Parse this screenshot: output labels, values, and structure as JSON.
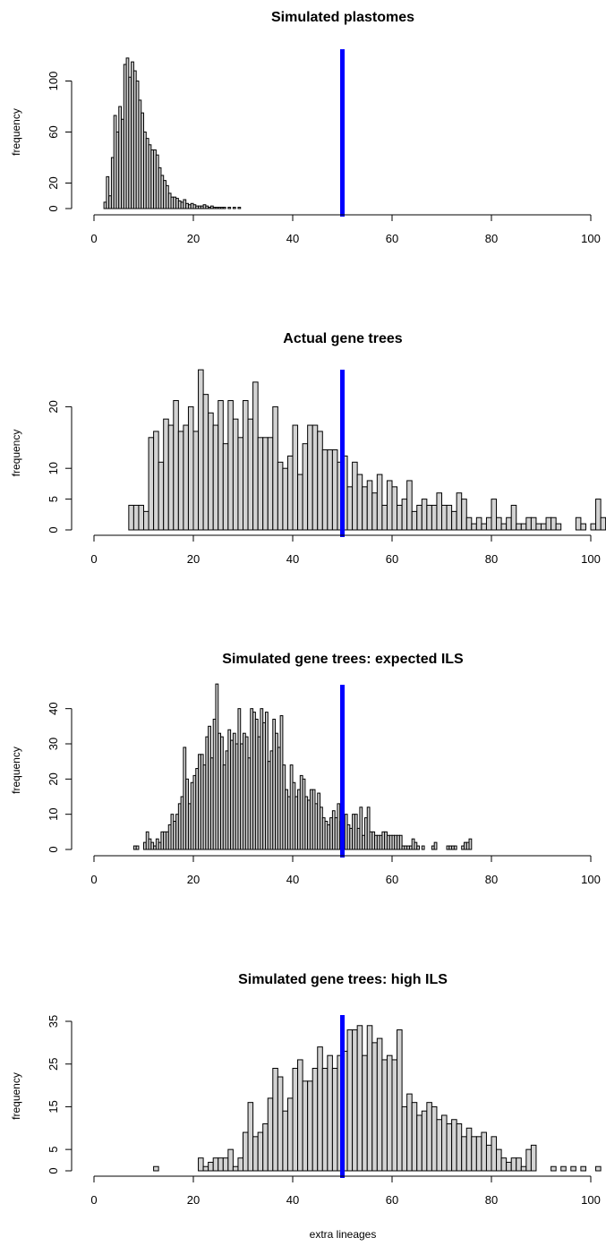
{
  "xlabel": "extra lineages",
  "chart_data": [
    {
      "type": "bar",
      "title": "Simulated plastomes",
      "ylabel": "frequency",
      "xlim": [
        0,
        100
      ],
      "ylim": [
        0,
        120
      ],
      "xticks": [
        0,
        20,
        40,
        60,
        80,
        100
      ],
      "yticks": [
        0,
        20,
        60,
        100
      ],
      "bin_width": 0.5,
      "reference_line": 50,
      "reference_color": "#0000ff",
      "bar_color": "#d3d3d3",
      "bins": [
        [
          2,
          5
        ],
        [
          2.5,
          25
        ],
        [
          3,
          10
        ],
        [
          3.5,
          40
        ],
        [
          4,
          73
        ],
        [
          4.5,
          60
        ],
        [
          5,
          80
        ],
        [
          5.5,
          70
        ],
        [
          6,
          113
        ],
        [
          6.5,
          118
        ],
        [
          7,
          103
        ],
        [
          7.5,
          115
        ],
        [
          8,
          108
        ],
        [
          8.5,
          100
        ],
        [
          9,
          85
        ],
        [
          9.5,
          75
        ],
        [
          10,
          60
        ],
        [
          10.5,
          55
        ],
        [
          11,
          50
        ],
        [
          11.5,
          46
        ],
        [
          12,
          46
        ],
        [
          12.5,
          42
        ],
        [
          13,
          32
        ],
        [
          13.5,
          26
        ],
        [
          14,
          22
        ],
        [
          14.5,
          18
        ],
        [
          15,
          12
        ],
        [
          15.5,
          9
        ],
        [
          16,
          9
        ],
        [
          16.5,
          8
        ],
        [
          17,
          6
        ],
        [
          17.5,
          5
        ],
        [
          18,
          7
        ],
        [
          18.5,
          4
        ],
        [
          19,
          3
        ],
        [
          19.5,
          4
        ],
        [
          20,
          3
        ],
        [
          20.5,
          2
        ],
        [
          21,
          2
        ],
        [
          21.5,
          2
        ],
        [
          22,
          3
        ],
        [
          22.5,
          2
        ],
        [
          23,
          1
        ],
        [
          23.5,
          2
        ],
        [
          24,
          1
        ],
        [
          24.5,
          1
        ],
        [
          25,
          1
        ],
        [
          25.5,
          1
        ],
        [
          26,
          1
        ],
        [
          27,
          1
        ],
        [
          28,
          1
        ],
        [
          29,
          1
        ]
      ]
    },
    {
      "type": "bar",
      "title": "Actual gene trees",
      "ylabel": "frequency",
      "xlim": [
        0,
        100
      ],
      "ylim": [
        0,
        25
      ],
      "xticks": [
        0,
        20,
        40,
        60,
        80,
        100
      ],
      "yticks": [
        0,
        5,
        10,
        20
      ],
      "bin_width": 1,
      "reference_line": 50,
      "reference_color": "#0000ff",
      "bar_color": "#d3d3d3",
      "bins": [
        [
          7,
          4
        ],
        [
          8,
          4
        ],
        [
          9,
          4
        ],
        [
          10,
          3
        ],
        [
          11,
          15
        ],
        [
          12,
          16
        ],
        [
          13,
          11
        ],
        [
          14,
          18
        ],
        [
          15,
          17
        ],
        [
          16,
          21
        ],
        [
          17,
          16
        ],
        [
          18,
          17
        ],
        [
          19,
          20
        ],
        [
          20,
          16
        ],
        [
          21,
          26
        ],
        [
          22,
          22
        ],
        [
          23,
          19
        ],
        [
          24,
          17
        ],
        [
          25,
          21
        ],
        [
          26,
          14
        ],
        [
          27,
          21
        ],
        [
          28,
          18
        ],
        [
          29,
          15
        ],
        [
          30,
          21
        ],
        [
          31,
          18
        ],
        [
          32,
          24
        ],
        [
          33,
          15
        ],
        [
          34,
          15
        ],
        [
          35,
          15
        ],
        [
          36,
          20
        ],
        [
          37,
          11
        ],
        [
          38,
          10
        ],
        [
          39,
          12
        ],
        [
          40,
          17
        ],
        [
          41,
          9
        ],
        [
          42,
          14
        ],
        [
          43,
          17
        ],
        [
          44,
          17
        ],
        [
          45,
          16
        ],
        [
          46,
          13
        ],
        [
          47,
          13
        ],
        [
          48,
          13
        ],
        [
          49,
          11
        ],
        [
          50,
          12
        ],
        [
          51,
          7
        ],
        [
          52,
          11
        ],
        [
          53,
          9
        ],
        [
          54,
          7
        ],
        [
          55,
          8
        ],
        [
          56,
          6
        ],
        [
          57,
          9
        ],
        [
          58,
          4
        ],
        [
          59,
          8
        ],
        [
          60,
          7
        ],
        [
          61,
          4
        ],
        [
          62,
          5
        ],
        [
          63,
          8
        ],
        [
          64,
          3
        ],
        [
          65,
          4
        ],
        [
          66,
          5
        ],
        [
          67,
          4
        ],
        [
          68,
          4
        ],
        [
          69,
          6
        ],
        [
          70,
          4
        ],
        [
          71,
          4
        ],
        [
          72,
          3
        ],
        [
          73,
          6
        ],
        [
          74,
          5
        ],
        [
          75,
          2
        ],
        [
          76,
          1
        ],
        [
          77,
          2
        ],
        [
          78,
          1
        ],
        [
          79,
          2
        ],
        [
          80,
          5
        ],
        [
          81,
          2
        ],
        [
          82,
          1
        ],
        [
          83,
          2
        ],
        [
          84,
          4
        ],
        [
          85,
          1
        ],
        [
          86,
          1
        ],
        [
          87,
          2
        ],
        [
          88,
          2
        ],
        [
          89,
          1
        ],
        [
          90,
          1
        ],
        [
          91,
          2
        ],
        [
          92,
          2
        ],
        [
          93,
          1
        ],
        [
          94,
          0
        ],
        [
          95,
          0
        ],
        [
          96,
          0
        ],
        [
          97,
          2
        ],
        [
          98,
          1
        ],
        [
          99,
          0
        ],
        [
          100,
          1
        ],
        [
          101,
          5
        ],
        [
          102,
          2
        ]
      ]
    },
    {
      "type": "bar",
      "title": "Simulated gene trees: expected ILS",
      "ylabel": "frequency",
      "xlim": [
        0,
        100
      ],
      "ylim": [
        0,
        45
      ],
      "xticks": [
        0,
        20,
        40,
        60,
        80,
        100
      ],
      "yticks": [
        0,
        10,
        20,
        30,
        40
      ],
      "bin_width": 0.5,
      "reference_line": 50,
      "reference_color": "#0000ff",
      "bar_color": "#d3d3d3",
      "bins": [
        [
          8,
          1
        ],
        [
          8.5,
          1
        ],
        [
          10,
          2
        ],
        [
          10.5,
          5
        ],
        [
          11,
          3
        ],
        [
          11.5,
          2
        ],
        [
          12,
          1
        ],
        [
          12.5,
          3
        ],
        [
          13,
          2
        ],
        [
          13.5,
          5
        ],
        [
          14,
          5
        ],
        [
          14.5,
          5
        ],
        [
          15,
          7
        ],
        [
          15.5,
          10
        ],
        [
          16,
          8
        ],
        [
          16.5,
          10
        ],
        [
          17,
          13
        ],
        [
          17.5,
          15
        ],
        [
          18,
          29
        ],
        [
          18.5,
          20
        ],
        [
          19,
          13
        ],
        [
          19.5,
          19
        ],
        [
          20,
          21
        ],
        [
          20.5,
          23
        ],
        [
          21,
          27
        ],
        [
          21.5,
          27
        ],
        [
          22,
          24
        ],
        [
          22.5,
          32
        ],
        [
          23,
          35
        ],
        [
          23.5,
          26
        ],
        [
          24,
          37
        ],
        [
          24.5,
          47
        ],
        [
          25,
          33
        ],
        [
          25.5,
          32
        ],
        [
          26,
          24
        ],
        [
          26.5,
          28
        ],
        [
          27,
          34
        ],
        [
          27.5,
          31
        ],
        [
          28,
          33
        ],
        [
          28.5,
          30
        ],
        [
          29,
          40
        ],
        [
          29.5,
          30
        ],
        [
          30,
          33
        ],
        [
          30.5,
          32
        ],
        [
          31,
          26
        ],
        [
          31.5,
          40
        ],
        [
          32,
          39
        ],
        [
          32.5,
          37
        ],
        [
          33,
          32
        ],
        [
          33.5,
          40
        ],
        [
          34,
          36
        ],
        [
          34.5,
          39
        ],
        [
          35,
          25
        ],
        [
          35.5,
          28
        ],
        [
          36,
          37
        ],
        [
          36.5,
          33
        ],
        [
          37,
          29
        ],
        [
          37.5,
          38
        ],
        [
          38,
          24
        ],
        [
          38.5,
          17
        ],
        [
          39,
          15
        ],
        [
          39.5,
          24
        ],
        [
          40,
          19
        ],
        [
          40.5,
          15
        ],
        [
          41,
          17
        ],
        [
          41.5,
          21
        ],
        [
          42,
          20
        ],
        [
          42.5,
          15
        ],
        [
          43,
          14
        ],
        [
          43.5,
          17
        ],
        [
          44,
          17
        ],
        [
          44.5,
          13
        ],
        [
          45,
          16
        ],
        [
          45.5,
          12
        ],
        [
          46,
          9
        ],
        [
          46.5,
          8
        ],
        [
          47,
          7
        ],
        [
          47.5,
          9
        ],
        [
          48,
          11
        ],
        [
          48.5,
          9
        ],
        [
          49,
          13
        ],
        [
          49.5,
          8
        ],
        [
          50,
          9
        ],
        [
          50.5,
          10
        ],
        [
          51,
          7
        ],
        [
          51.5,
          6
        ],
        [
          52,
          10
        ],
        [
          52.5,
          10
        ],
        [
          53,
          6
        ],
        [
          53.5,
          12
        ],
        [
          54,
          4
        ],
        [
          54.5,
          9
        ],
        [
          55,
          12
        ],
        [
          55.5,
          5
        ],
        [
          56,
          5
        ],
        [
          56.5,
          4
        ],
        [
          57,
          4
        ],
        [
          57.5,
          4
        ],
        [
          58,
          5
        ],
        [
          58.5,
          5
        ],
        [
          59,
          4
        ],
        [
          59.5,
          4
        ],
        [
          60,
          4
        ],
        [
          60.5,
          4
        ],
        [
          61,
          4
        ],
        [
          61.5,
          4
        ],
        [
          62,
          1
        ],
        [
          62.5,
          1
        ],
        [
          63,
          1
        ],
        [
          63.5,
          1
        ],
        [
          64,
          3
        ],
        [
          64.5,
          2
        ],
        [
          65,
          1
        ],
        [
          66,
          1
        ],
        [
          68,
          1
        ],
        [
          68.5,
          2
        ],
        [
          71,
          1
        ],
        [
          71.5,
          1
        ],
        [
          72,
          1
        ],
        [
          72.5,
          1
        ],
        [
          74,
          1
        ],
        [
          74.5,
          2
        ],
        [
          75,
          2
        ],
        [
          75.5,
          3
        ]
      ]
    },
    {
      "type": "bar",
      "title": "Simulated gene trees: high ILS",
      "ylabel": "frequency",
      "xlim": [
        0,
        100
      ],
      "ylim": [
        0,
        35
      ],
      "xticks": [
        0,
        20,
        40,
        60,
        80,
        100
      ],
      "yticks": [
        0,
        5,
        15,
        25,
        35
      ],
      "bin_width": 1,
      "reference_line": 50,
      "reference_color": "#0000ff",
      "bar_color": "#d3d3d3",
      "bins": [
        [
          12,
          1
        ],
        [
          13,
          0
        ],
        [
          14,
          0
        ],
        [
          15,
          0
        ],
        [
          16,
          0
        ],
        [
          17,
          0
        ],
        [
          18,
          0
        ],
        [
          19,
          0
        ],
        [
          20,
          0
        ],
        [
          21,
          3
        ],
        [
          22,
          1
        ],
        [
          23,
          2
        ],
        [
          24,
          3
        ],
        [
          25,
          3
        ],
        [
          26,
          3
        ],
        [
          27,
          5
        ],
        [
          28,
          1
        ],
        [
          29,
          3
        ],
        [
          30,
          9
        ],
        [
          31,
          16
        ],
        [
          32,
          8
        ],
        [
          33,
          9
        ],
        [
          34,
          11
        ],
        [
          35,
          17
        ],
        [
          36,
          24
        ],
        [
          37,
          22
        ],
        [
          38,
          14
        ],
        [
          39,
          17
        ],
        [
          40,
          24
        ],
        [
          41,
          26
        ],
        [
          42,
          21
        ],
        [
          43,
          21
        ],
        [
          44,
          24
        ],
        [
          45,
          29
        ],
        [
          46,
          24
        ],
        [
          47,
          27
        ],
        [
          48,
          24
        ],
        [
          49,
          27
        ],
        [
          50,
          28
        ],
        [
          51,
          33
        ],
        [
          52,
          33
        ],
        [
          53,
          34
        ],
        [
          54,
          27
        ],
        [
          55,
          34
        ],
        [
          56,
          30
        ],
        [
          57,
          31
        ],
        [
          58,
          26
        ],
        [
          59,
          27
        ],
        [
          60,
          26
        ],
        [
          61,
          33
        ],
        [
          62,
          15
        ],
        [
          63,
          18
        ],
        [
          64,
          16
        ],
        [
          65,
          13
        ],
        [
          66,
          14
        ],
        [
          67,
          16
        ],
        [
          68,
          15
        ],
        [
          69,
          12
        ],
        [
          70,
          13
        ],
        [
          71,
          11
        ],
        [
          72,
          12
        ],
        [
          73,
          11
        ],
        [
          74,
          8
        ],
        [
          75,
          10
        ],
        [
          76,
          8
        ],
        [
          77,
          8
        ],
        [
          78,
          9
        ],
        [
          79,
          6
        ],
        [
          80,
          8
        ],
        [
          81,
          5
        ],
        [
          82,
          3
        ],
        [
          83,
          2
        ],
        [
          84,
          3
        ],
        [
          85,
          3
        ],
        [
          86,
          1
        ],
        [
          87,
          5
        ],
        [
          88,
          6
        ],
        [
          89,
          0
        ],
        [
          90,
          0
        ],
        [
          91,
          0
        ],
        [
          92,
          1
        ],
        [
          93,
          0
        ],
        [
          94,
          1
        ],
        [
          95,
          0
        ],
        [
          96,
          1
        ],
        [
          97,
          0
        ],
        [
          98,
          1
        ],
        [
          99,
          0
        ],
        [
          100,
          0
        ],
        [
          101,
          1
        ]
      ]
    }
  ]
}
